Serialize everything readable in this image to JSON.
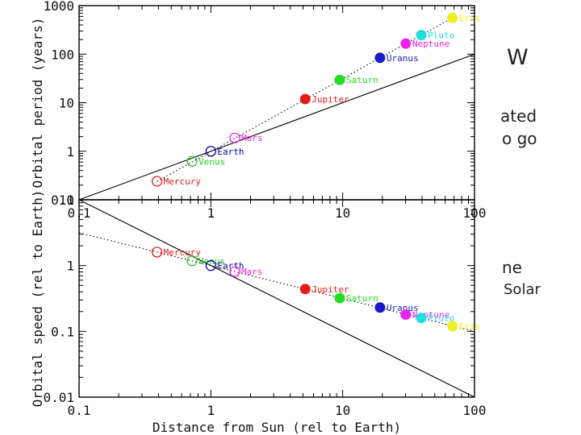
{
  "slide_fragments": {
    "heading": "W",
    "line1": "ated",
    "line2": "o go",
    "line3": "ne",
    "line4": "Solar"
  },
  "colors": {
    "Mercury": "#e41a1c",
    "Venus": "#22cc22",
    "Earth": "#000099",
    "Mars": "#ee22ee",
    "Jupiter": "#e41a1c",
    "Saturn": "#22dd22",
    "Uranus": "#1a1acc",
    "Neptune": "#ee22ee",
    "Pluto": "#22dddd",
    "Eris": "#eeee22"
  },
  "chart_data": [
    {
      "type": "scatter",
      "title": "",
      "xlabel": "",
      "ylabel": "Orbital period (years)",
      "xscale": "log",
      "yscale": "log",
      "xlim": [
        0.1,
        100
      ],
      "ylim": [
        0.1,
        1000
      ],
      "xticks": [
        "0.1",
        "1",
        "10",
        "100"
      ],
      "yticks": [
        "0.1",
        "1",
        "10",
        "100",
        "1000"
      ],
      "series": [
        {
          "name": "Mercury",
          "x": 0.39,
          "y": 0.24,
          "marker": "open"
        },
        {
          "name": "Venus",
          "x": 0.72,
          "y": 0.62,
          "marker": "open"
        },
        {
          "name": "Earth",
          "x": 1.0,
          "y": 1.0,
          "marker": "open"
        },
        {
          "name": "Mars",
          "x": 1.52,
          "y": 1.88,
          "marker": "open"
        },
        {
          "name": "Jupiter",
          "x": 5.2,
          "y": 11.9,
          "marker": "filled"
        },
        {
          "name": "Saturn",
          "x": 9.5,
          "y": 29.5,
          "marker": "filled"
        },
        {
          "name": "Uranus",
          "x": 19.2,
          "y": 84,
          "marker": "filled"
        },
        {
          "name": "Neptune",
          "x": 30.1,
          "y": 165,
          "marker": "filled"
        },
        {
          "name": "Pluto",
          "x": 39.5,
          "y": 248,
          "marker": "filled"
        },
        {
          "name": "Eris",
          "x": 68,
          "y": 560,
          "marker": "filled"
        }
      ],
      "lines": [
        {
          "name": "linear reference",
          "style": "solid",
          "from": [
            0.1,
            0.1
          ],
          "to": [
            100,
            100
          ]
        },
        {
          "name": "Kepler fit",
          "style": "dotted",
          "from": [
            0.39,
            0.24
          ],
          "to": [
            68,
            560
          ]
        }
      ]
    },
    {
      "type": "scatter",
      "title": "",
      "xlabel": "Distance from Sun (rel to Earth)",
      "ylabel": "Orbital speed (rel to Earth)",
      "xscale": "log",
      "yscale": "log",
      "xlim": [
        0.1,
        100
      ],
      "ylim": [
        0.01,
        10
      ],
      "xticks": [
        "0.1",
        "1",
        "10",
        "100"
      ],
      "yticks": [
        "0.01",
        "0.1",
        "1",
        "10"
      ],
      "series": [
        {
          "name": "Mercury",
          "x": 0.39,
          "y": 1.6,
          "marker": "open"
        },
        {
          "name": "Venus",
          "x": 0.72,
          "y": 1.18,
          "marker": "open"
        },
        {
          "name": "Earth",
          "x": 1.0,
          "y": 1.0,
          "marker": "open"
        },
        {
          "name": "Mars",
          "x": 1.52,
          "y": 0.81,
          "marker": "open"
        },
        {
          "name": "Jupiter",
          "x": 5.2,
          "y": 0.44,
          "marker": "filled"
        },
        {
          "name": "Saturn",
          "x": 9.5,
          "y": 0.32,
          "marker": "filled"
        },
        {
          "name": "Uranus",
          "x": 19.2,
          "y": 0.23,
          "marker": "filled"
        },
        {
          "name": "Neptune",
          "x": 30.1,
          "y": 0.18,
          "marker": "filled"
        },
        {
          "name": "Pluto",
          "x": 39.5,
          "y": 0.16,
          "marker": "filled"
        },
        {
          "name": "Eris",
          "x": 68,
          "y": 0.12,
          "marker": "filled"
        }
      ],
      "lines": [
        {
          "name": "inverse reference",
          "style": "solid",
          "from": [
            0.1,
            10
          ],
          "to": [
            100,
            0.01
          ]
        },
        {
          "name": "Kepler fit",
          "style": "dotted",
          "from": [
            0.1,
            3.16
          ],
          "to": [
            100,
            0.1
          ]
        }
      ]
    }
  ]
}
